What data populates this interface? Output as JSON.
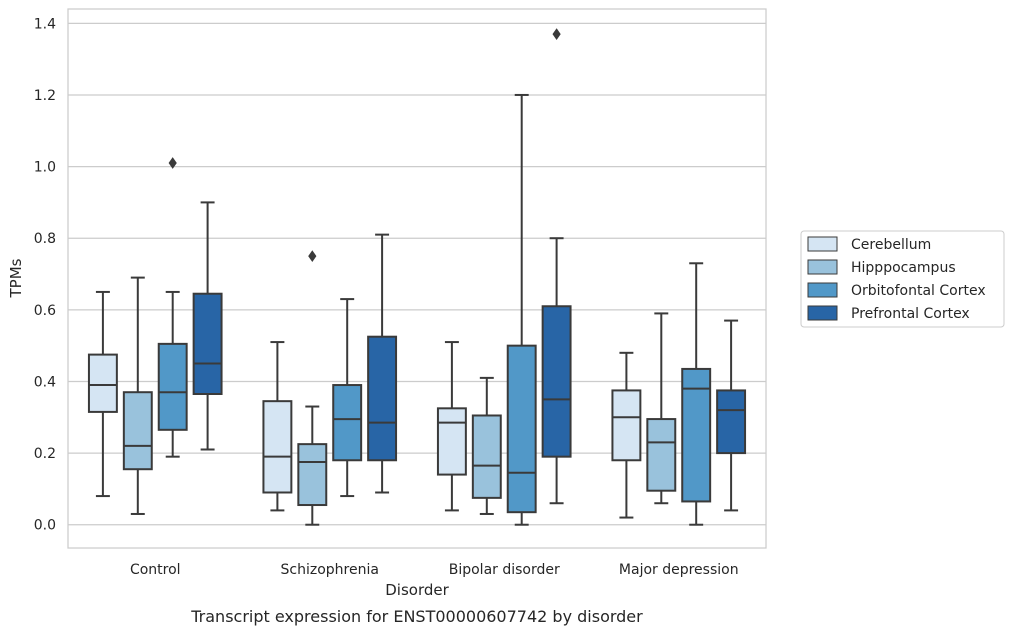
{
  "chart_data": {
    "type": "box",
    "caption": "Transcript expression for ENST00000607742 by disorder",
    "xlabel": "Disorder",
    "ylabel": "TPMs",
    "ylim": [
      -0.065,
      1.44
    ],
    "yticks": [
      0.0,
      0.2,
      0.4,
      0.6,
      0.8,
      1.0,
      1.2,
      1.4
    ],
    "ytick_labels": [
      "0.0",
      "0.2",
      "0.4",
      "0.6",
      "0.8",
      "1.0",
      "1.2",
      "1.4"
    ],
    "grid": "horizontal",
    "legend_position": "right",
    "categories": [
      "Control",
      "Schizophrenia",
      "Bipolar disorder",
      "Major depression"
    ],
    "series": [
      {
        "name": "Cerebellum",
        "color": "#d5e5f3",
        "boxes": [
          {
            "whisker_low": 0.08,
            "q1": 0.315,
            "median": 0.39,
            "q3": 0.475,
            "whisker_high": 0.65,
            "outliers": []
          },
          {
            "whisker_low": 0.04,
            "q1": 0.09,
            "median": 0.19,
            "q3": 0.345,
            "whisker_high": 0.51,
            "outliers": []
          },
          {
            "whisker_low": 0.04,
            "q1": 0.14,
            "median": 0.285,
            "q3": 0.325,
            "whisker_high": 0.51,
            "outliers": []
          },
          {
            "whisker_low": 0.02,
            "q1": 0.18,
            "median": 0.3,
            "q3": 0.375,
            "whisker_high": 0.48,
            "outliers": []
          }
        ]
      },
      {
        "name": "Hipppocampus",
        "color": "#99c2dc",
        "boxes": [
          {
            "whisker_low": 0.03,
            "q1": 0.155,
            "median": 0.22,
            "q3": 0.37,
            "whisker_high": 0.69,
            "outliers": []
          },
          {
            "whisker_low": 0.0,
            "q1": 0.055,
            "median": 0.175,
            "q3": 0.225,
            "whisker_high": 0.33,
            "outliers": [
              0.75
            ]
          },
          {
            "whisker_low": 0.03,
            "q1": 0.075,
            "median": 0.165,
            "q3": 0.305,
            "whisker_high": 0.41,
            "outliers": []
          },
          {
            "whisker_low": 0.06,
            "q1": 0.095,
            "median": 0.23,
            "q3": 0.295,
            "whisker_high": 0.59,
            "outliers": []
          }
        ]
      },
      {
        "name": "Orbitofontal Cortex",
        "color": "#5198c8",
        "boxes": [
          {
            "whisker_low": 0.19,
            "q1": 0.265,
            "median": 0.37,
            "q3": 0.505,
            "whisker_high": 0.65,
            "outliers": [
              1.01
            ]
          },
          {
            "whisker_low": 0.08,
            "q1": 0.18,
            "median": 0.295,
            "q3": 0.39,
            "whisker_high": 0.63,
            "outliers": []
          },
          {
            "whisker_low": 0.0,
            "q1": 0.035,
            "median": 0.145,
            "q3": 0.5,
            "whisker_high": 1.2,
            "outliers": []
          },
          {
            "whisker_low": 0.0,
            "q1": 0.065,
            "median": 0.38,
            "q3": 0.435,
            "whisker_high": 0.73,
            "outliers": []
          }
        ]
      },
      {
        "name": "Prefrontal Cortex",
        "color": "#2865a6",
        "boxes": [
          {
            "whisker_low": 0.21,
            "q1": 0.365,
            "median": 0.45,
            "q3": 0.645,
            "whisker_high": 0.9,
            "outliers": []
          },
          {
            "whisker_low": 0.09,
            "q1": 0.18,
            "median": 0.285,
            "q3": 0.525,
            "whisker_high": 0.81,
            "outliers": []
          },
          {
            "whisker_low": 0.06,
            "q1": 0.19,
            "median": 0.35,
            "q3": 0.61,
            "whisker_high": 0.8,
            "outliers": [
              1.37
            ]
          },
          {
            "whisker_low": 0.04,
            "q1": 0.2,
            "median": 0.32,
            "q3": 0.375,
            "whisker_high": 0.57,
            "outliers": []
          }
        ]
      }
    ]
  },
  "colors": {
    "grid": "#cccccc",
    "axis_frame": "#cccccc",
    "box_edge": "#3a3a3a",
    "text": "#262626"
  }
}
